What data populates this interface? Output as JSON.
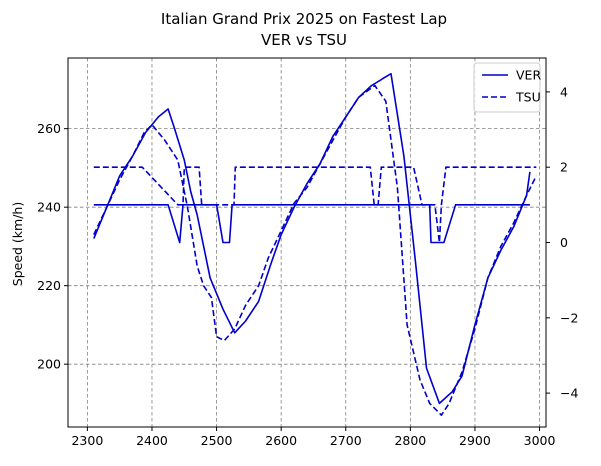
{
  "chart_data": {
    "type": "line",
    "title": "Italian Grand Prix 2025 on Fastest Lap",
    "subtitle": "VER vs TSU",
    "xlabel": "",
    "ylabel": "Speed (km/h)",
    "y2label": "",
    "xlim": [
      2270,
      3010
    ],
    "ylim": [
      184,
      278
    ],
    "y2lim": [
      -4.9,
      4.9
    ],
    "xticks": [
      2300,
      2400,
      2500,
      2600,
      2700,
      2800,
      2900,
      3000
    ],
    "yticks": [
      200,
      220,
      240,
      260
    ],
    "y2ticks": [
      -4,
      -2,
      0,
      2,
      4
    ],
    "grid": true,
    "legend": "top-right",
    "series": [
      {
        "name": "VER",
        "axis": "left",
        "style": "solid",
        "color": "#0000cc",
        "x": [
          2310,
          2330,
          2350,
          2370,
          2390,
          2410,
          2425,
          2435,
          2450,
          2460,
          2470,
          2490,
          2510,
          2528,
          2545,
          2565,
          2585,
          2600,
          2620,
          2640,
          2660,
          2680,
          2700,
          2720,
          2740,
          2760,
          2770,
          2790,
          2808,
          2825,
          2845,
          2865,
          2880,
          2900,
          2920,
          2940,
          2960,
          2980,
          2985
        ],
        "y": [
          232,
          240,
          248,
          253,
          259,
          263,
          265,
          260,
          252,
          244,
          238,
          222,
          214,
          208,
          211,
          216,
          226,
          233,
          240,
          246,
          251,
          258,
          263,
          268,
          271,
          273,
          274,
          253,
          226,
          199,
          190,
          193,
          197,
          210,
          222,
          229,
          235,
          243,
          249
        ]
      },
      {
        "name": "TSU",
        "axis": "left",
        "style": "dashed",
        "color": "#0000cc",
        "x": [
          2310,
          2330,
          2350,
          2370,
          2388,
          2400,
          2420,
          2440,
          2455,
          2470,
          2480,
          2492,
          2500,
          2512,
          2528,
          2545,
          2565,
          2580,
          2600,
          2620,
          2640,
          2660,
          2680,
          2700,
          2720,
          2745,
          2762,
          2780,
          2795,
          2815,
          2830,
          2848,
          2860,
          2880,
          2900,
          2920,
          2940,
          2960,
          2980,
          2995
        ],
        "y": [
          233,
          240,
          247,
          253,
          259,
          261,
          257,
          252,
          240,
          225,
          220,
          217,
          207,
          206,
          209,
          215,
          220,
          227,
          234,
          241,
          245,
          251,
          257,
          263,
          268,
          271,
          267,
          245,
          210,
          196,
          190,
          187,
          190,
          198,
          209,
          222,
          230,
          236,
          243,
          248
        ]
      },
      {
        "name": "VER",
        "axis": "right",
        "style": "solid",
        "color": "#0000cc",
        "x": [
          2310,
          2425,
          2443,
          2448,
          2500,
          2510,
          2520,
          2524,
          2815,
          2830,
          2832,
          2852,
          2870,
          2985
        ],
        "y": [
          1.0,
          1.0,
          0.0,
          1.0,
          1.0,
          0.0,
          0.0,
          1.0,
          1.0,
          1.0,
          0.0,
          0.0,
          1.0,
          1.0
        ]
      },
      {
        "name": "TSU",
        "axis": "right",
        "style": "dashed",
        "color": "#0000cc",
        "x": [
          2310,
          2385,
          2440,
          2448,
          2450,
          2473,
          2477,
          2520,
          2527,
          2529,
          2738,
          2744,
          2750,
          2755,
          2805,
          2818,
          2838,
          2845,
          2848,
          2855,
          2995
        ],
        "y": [
          2.0,
          2.0,
          1.0,
          1.0,
          2.0,
          2.0,
          1.0,
          1.0,
          1.0,
          2.0,
          2.0,
          1.0,
          1.0,
          2.0,
          2.0,
          1.0,
          1.0,
          0.0,
          1.0,
          2.0,
          2.0
        ]
      }
    ],
    "legend_entries": [
      {
        "name": "VER",
        "style": "solid"
      },
      {
        "name": "TSU",
        "style": "dashed"
      }
    ]
  }
}
